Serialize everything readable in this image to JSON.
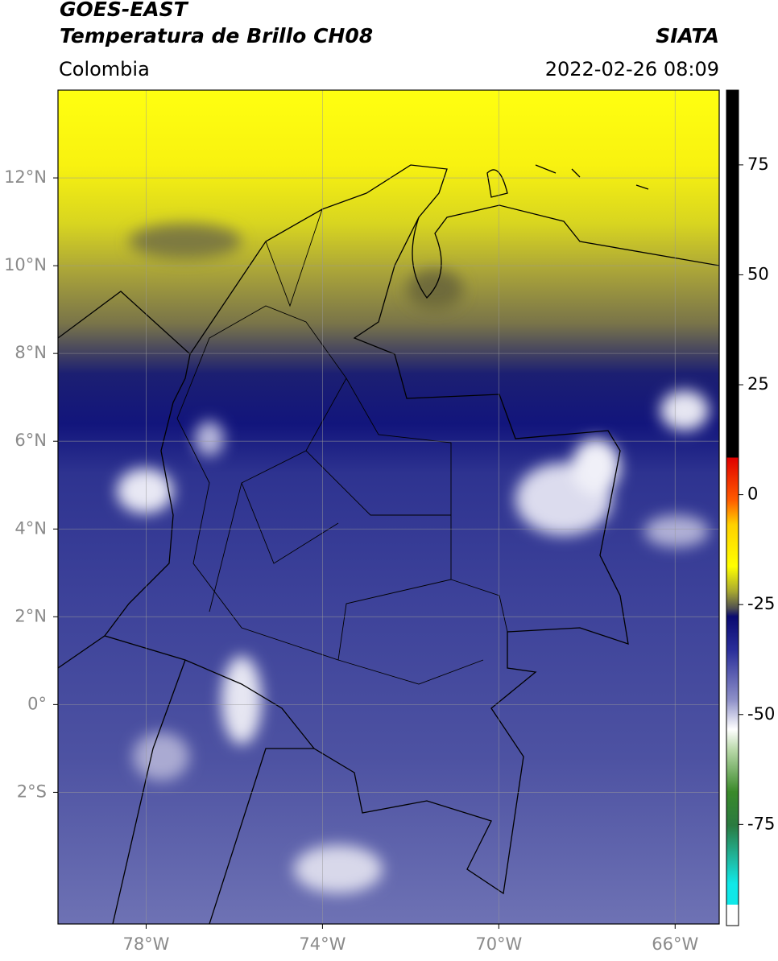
{
  "chart_data": {
    "type": "map",
    "title": "GOES-EAST",
    "subtitle": "Temperatura de Brillo CH08",
    "source": "SIATA",
    "region": "Colombia",
    "datetime": "2022-02-26 08:09",
    "xlim": [
      -80,
      -65
    ],
    "ylim": [
      -5,
      14
    ],
    "xticks": [
      {
        "value": -78,
        "label": "78°W"
      },
      {
        "value": -74,
        "label": "74°W"
      },
      {
        "value": -70,
        "label": "70°W"
      },
      {
        "value": -66,
        "label": "66°W"
      }
    ],
    "yticks": [
      {
        "value": -2,
        "label": "2°S"
      },
      {
        "value": 0,
        "label": "0°"
      },
      {
        "value": 2,
        "label": "2°N"
      },
      {
        "value": 4,
        "label": "4°N"
      },
      {
        "value": 6,
        "label": "6°N"
      },
      {
        "value": 8,
        "label": "8°N"
      },
      {
        "value": 10,
        "label": "10°N"
      },
      {
        "value": 12,
        "label": "12°N"
      }
    ],
    "grid": true,
    "colorbar": {
      "lim": [
        -98,
        92
      ],
      "ticks": [
        -75,
        -50,
        -25,
        0,
        25,
        50,
        75
      ]
    }
  }
}
